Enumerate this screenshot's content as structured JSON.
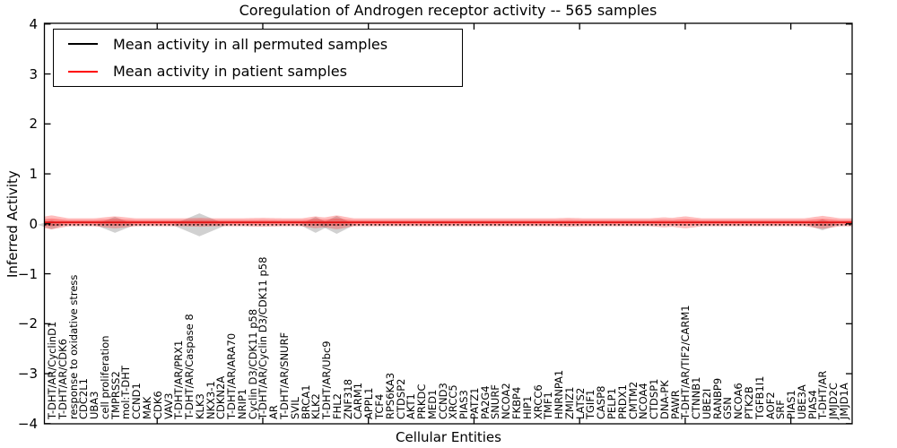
{
  "legend": {
    "position": "upper left",
    "items": [
      {
        "label": "Mean activity in all permuted samples",
        "color": "#000000",
        "line_style": "dashed"
      },
      {
        "label": "Mean activity in patient samples",
        "color": "#ff0000",
        "line_style": "solid"
      }
    ]
  },
  "chart_data": {
    "type": "line",
    "title": "Coregulation of Androgen receptor activity -- 565 samples",
    "xlabel": "Cellular Entities",
    "ylabel": "Inferred Activity",
    "ylim": [
      -4,
      4
    ],
    "yticks": [
      -4,
      -3,
      -2,
      -1,
      0,
      1,
      2,
      3,
      4
    ],
    "x_major_tick_indices": [
      10,
      20,
      30,
      40,
      50,
      60,
      70
    ],
    "grid": false,
    "legend_position": "upper left",
    "categories": [
      "T-DHT/AR/CyclinD1",
      "T-DHT/AR/CDK6",
      "response to oxidative stress",
      "CDC2L1",
      "UBA3",
      "cell proliferation",
      "TMPRSS2",
      "mol:T-DHT",
      "CCND1",
      "MAK",
      "CDK6",
      "VAV3",
      "T-DHT/AR/PRX1",
      "T-DHT/AR/Caspase 8",
      "KLK3",
      "NKX3-1",
      "CDKN2A",
      "T-DHT/AR/ARA70",
      "NRIP1",
      "Cyclin D3/CDK11 p58",
      "T-DHT/AR/Cyclin D3/CDK11 p58",
      "AR",
      "T-DHT/AR/SNURF",
      "SVIL",
      "BRCA1",
      "KLK2",
      "T-DHT/AR/Ubc9",
      "FHL2",
      "ZNF318",
      "CARM1",
      "APPL1",
      "TCF4",
      "RPS6KA3",
      "CTDSP2",
      "AKT1",
      "PRKDC",
      "MED1",
      "CCND3",
      "XRCC5",
      "PIAS3",
      "PATZ1",
      "PA2G4",
      "SNURF",
      "NCOA2",
      "FKBP4",
      "HIP1",
      "XRCC6",
      "TMF1",
      "HNRNPA1",
      "ZMIZ1",
      "LATS2",
      "TGIF1",
      "CASP8",
      "PELP1",
      "PRDX1",
      "CMTM2",
      "NCOA4",
      "CTDSP1",
      "DNA-PK",
      "PAWR",
      "T-DHT/AR/TIF2/CARM1",
      "CTNNB1",
      "UBE2I",
      "RANBP9",
      "GSN",
      "NCOA6",
      "PTK2B",
      "TGFB1I1",
      "AOF2",
      "SRF",
      "PIAS1",
      "UBE3A",
      "PIAS4",
      "T-DHT/AR",
      "JMJD2C",
      "JMJD1A"
    ],
    "series": [
      {
        "name": "Mean activity in all permuted samples",
        "color": "#000000",
        "line_style": "dashed",
        "baseline": -0.02,
        "violin_color": "#999999",
        "violins": [
          {
            "index": 0,
            "entity": "T-DHT/AR/CyclinD1",
            "max_dev": 0.09,
            "span": 1.3
          },
          {
            "index": 6,
            "entity": "TMPRSS2",
            "max_dev": 0.16,
            "span": 1.9
          },
          {
            "index": 14,
            "entity": "KLK3",
            "max_dev": 0.23,
            "span": 2.6
          },
          {
            "index": 25,
            "entity": "KLK2",
            "max_dev": 0.16,
            "span": 1.5
          },
          {
            "index": 27,
            "entity": "FHL2",
            "max_dev": 0.18,
            "span": 1.7
          },
          {
            "index": 73,
            "entity": "T-DHT/AR",
            "max_dev": 0.11,
            "span": 1.5
          }
        ]
      },
      {
        "name": "Mean activity in patient samples",
        "color": "#ff0000",
        "line_style": "solid",
        "baseline": 0.03,
        "band_half_width": 0.08,
        "violin_color": "#ff2020",
        "violins": [
          {
            "index": 0,
            "entity": "T-DHT/AR/CyclinD1",
            "max_dev": 0.14,
            "span": 1.6
          },
          {
            "index": 6,
            "entity": "TMPRSS2",
            "max_dev": 0.12,
            "span": 2.0
          },
          {
            "index": 14,
            "entity": "KLK3",
            "max_dev": 0.09,
            "span": 1.5
          },
          {
            "index": 20,
            "entity": "T-DHT/AR/Cyclin D3/CDK11 p58",
            "max_dev": 0.09,
            "span": 2.0
          },
          {
            "index": 25,
            "entity": "KLK2",
            "max_dev": 0.12,
            "span": 1.3
          },
          {
            "index": 26,
            "entity": "T-DHT/AR/Ubc9",
            "max_dev": 0.1,
            "span": 1.2
          },
          {
            "index": 27,
            "entity": "FHL2",
            "max_dev": 0.14,
            "span": 1.6
          },
          {
            "index": 49,
            "entity": "ZMIZ1",
            "max_dev": 0.09,
            "span": 1.5
          },
          {
            "index": 58,
            "entity": "DNA-PK",
            "max_dev": 0.1,
            "span": 1.4
          },
          {
            "index": 60,
            "entity": "T-DHT/AR/TIF2/CARM1",
            "max_dev": 0.12,
            "span": 1.6
          },
          {
            "index": 69,
            "entity": "SRF",
            "max_dev": 0.08,
            "span": 1.4
          },
          {
            "index": 73,
            "entity": "T-DHT/AR",
            "max_dev": 0.13,
            "span": 1.7
          }
        ]
      }
    ]
  }
}
